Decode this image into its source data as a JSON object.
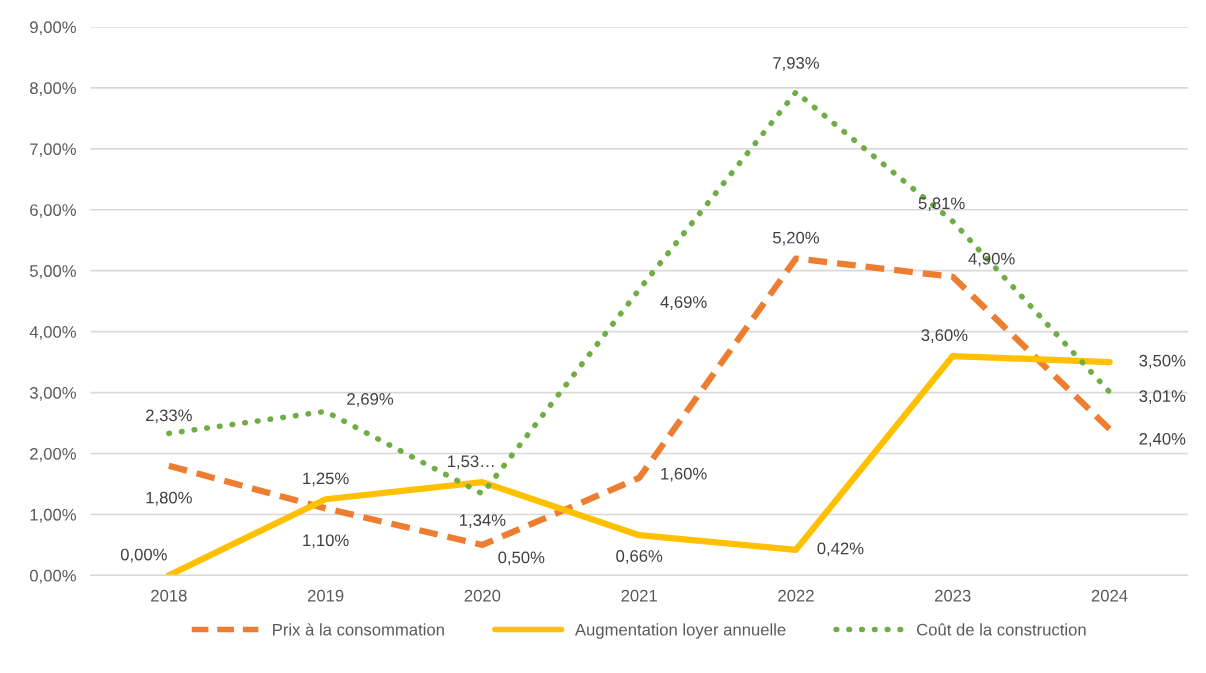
{
  "chart_data": {
    "type": "line",
    "categories": [
      "2018",
      "2019",
      "2020",
      "2021",
      "2022",
      "2023",
      "2024"
    ],
    "series": [
      {
        "name": "Prix à la consommation",
        "color": "#ed7d31",
        "line_style": "dashed",
        "values": [
          1.8,
          1.1,
          0.5,
          1.6,
          5.2,
          4.9,
          2.4
        ],
        "value_labels": [
          "1,80%",
          "1,10%",
          "0,50%",
          "1,60%",
          "5,20%",
          "4,90%",
          "2,40%"
        ]
      },
      {
        "name": "Augmentation loyer annuelle",
        "color": "#ffc000",
        "line_style": "solid",
        "values": [
          0.0,
          1.25,
          1.53,
          0.66,
          0.42,
          3.6,
          3.5
        ],
        "value_labels": [
          "0,00%",
          "1,25%",
          "1,53…",
          "0,66%",
          "0,42%",
          "3,60%",
          "3,50%"
        ]
      },
      {
        "name": "Coût de la construction",
        "color": "#70ad47",
        "line_style": "dotted",
        "values": [
          2.33,
          2.69,
          1.34,
          4.69,
          7.93,
          5.81,
          3.01
        ],
        "value_labels": [
          "2,33%",
          "2,69%",
          "1,34%",
          "4,69%",
          "7,93%",
          "5,81%",
          "3,01%"
        ]
      }
    ],
    "ylim": [
      0,
      9
    ],
    "yticks": [
      {
        "value": 0,
        "label": "0,00%"
      },
      {
        "value": 1,
        "label": "1,00%"
      },
      {
        "value": 2,
        "label": "2,00%"
      },
      {
        "value": 3,
        "label": "3,00%"
      },
      {
        "value": 4,
        "label": "4,00%"
      },
      {
        "value": 5,
        "label": "5,00%"
      },
      {
        "value": 6,
        "label": "6,00%"
      },
      {
        "value": 7,
        "label": "7,00%"
      },
      {
        "value": 8,
        "label": "8,00%"
      },
      {
        "value": 9,
        "label": "9,00%"
      }
    ],
    "grid": "y",
    "legend": "bottom",
    "marker": "none"
  }
}
